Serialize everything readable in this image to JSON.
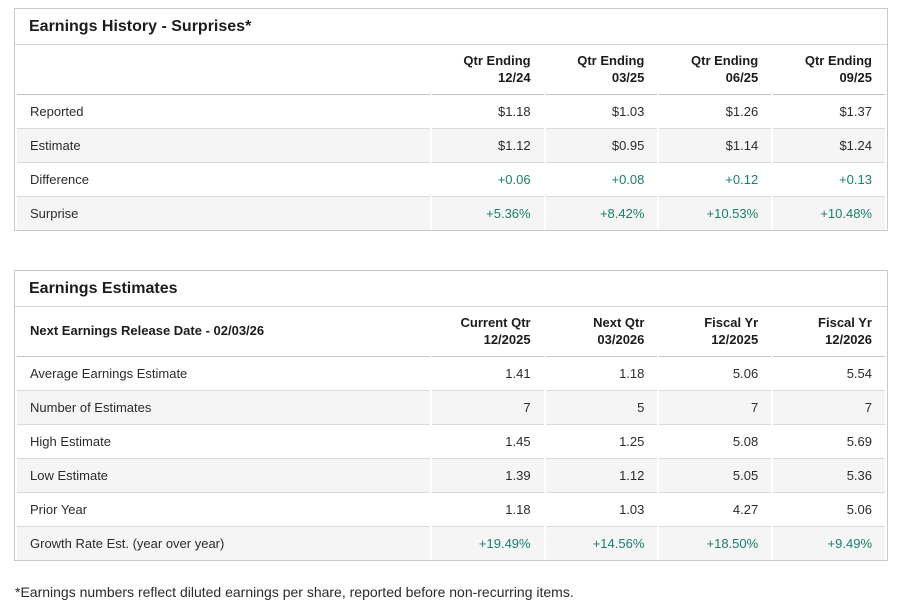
{
  "colors": {
    "positive_green": "#1a7e6c"
  },
  "earnings_history": {
    "title": "Earnings History - Surprises*",
    "columns": [
      [
        "Qtr Ending",
        "12/24"
      ],
      [
        "Qtr Ending",
        "03/25"
      ],
      [
        "Qtr Ending",
        "06/25"
      ],
      [
        "Qtr Ending",
        "09/25"
      ]
    ],
    "rows": [
      {
        "label": "Reported",
        "values": [
          "$1.18",
          "$1.03",
          "$1.26",
          "$1.37"
        ],
        "green": false
      },
      {
        "label": "Estimate",
        "values": [
          "$1.12",
          "$0.95",
          "$1.14",
          "$1.24"
        ],
        "green": false
      },
      {
        "label": "Difference",
        "values": [
          "+0.06",
          "+0.08",
          "+0.12",
          "+0.13"
        ],
        "green": true
      },
      {
        "label": "Surprise",
        "values": [
          "+5.36%",
          "+8.42%",
          "+10.53%",
          "+10.48%"
        ],
        "green": true
      }
    ]
  },
  "earnings_estimates": {
    "title": "Earnings Estimates",
    "row_header": "Next Earnings Release Date - 02/03/26",
    "columns": [
      [
        "Current Qtr",
        "12/2025"
      ],
      [
        "Next Qtr",
        "03/2026"
      ],
      [
        "Fiscal Yr",
        "12/2025"
      ],
      [
        "Fiscal Yr",
        "12/2026"
      ]
    ],
    "rows": [
      {
        "label": "Average Earnings Estimate",
        "values": [
          "1.41",
          "1.18",
          "5.06",
          "5.54"
        ],
        "green": false
      },
      {
        "label": "Number of Estimates",
        "values": [
          "7",
          "5",
          "7",
          "7"
        ],
        "green": false
      },
      {
        "label": "High Estimate",
        "values": [
          "1.45",
          "1.25",
          "5.08",
          "5.69"
        ],
        "green": false
      },
      {
        "label": "Low Estimate",
        "values": [
          "1.39",
          "1.12",
          "5.05",
          "5.36"
        ],
        "green": false
      },
      {
        "label": "Prior Year",
        "values": [
          "1.18",
          "1.03",
          "4.27",
          "5.06"
        ],
        "green": false
      },
      {
        "label": "Growth Rate Est. (year over year)",
        "values": [
          "+19.49%",
          "+14.56%",
          "+18.50%",
          "+9.49%"
        ],
        "green": true
      }
    ]
  },
  "footnote": "*Earnings numbers reflect diluted earnings per share, reported before non-recurring items."
}
